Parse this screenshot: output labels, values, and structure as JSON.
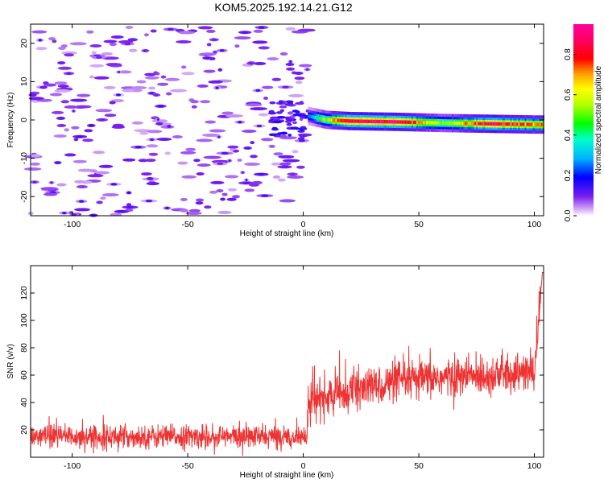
{
  "figure": {
    "title": "KOM5.2025.192.14.21.G12"
  },
  "chart_data": [
    {
      "type": "heatmap",
      "xlabel": "Height of straight line (km)",
      "ylabel": "Frequency (Hz)",
      "xlim": [
        -118,
        104
      ],
      "ylim": [
        -25,
        25
      ],
      "x_ticks": [
        -100,
        -50,
        0,
        50,
        100
      ],
      "y_ticks": [
        -20,
        -10,
        0,
        10,
        20
      ],
      "colorbar": {
        "label": "Normalized spectral amplitude",
        "range": [
          0,
          0.95
        ],
        "ticks": [
          0.0,
          0.2,
          0.4,
          0.6,
          0.8
        ],
        "colormap": "rainbow (purple to magenta)"
      },
      "signal": {
        "x_range": [
          2,
          104
        ],
        "frequency_hz": [
          0.5,
          -1
        ],
        "peak_amplitude": 0.95,
        "description_points": [
          {
            "x": 2,
            "f": 1.0,
            "amp": 0.25
          },
          {
            "x": 10,
            "f": 0.0,
            "amp": 0.6
          },
          {
            "x": 20,
            "f": -0.3,
            "amp": 0.95
          },
          {
            "x": 40,
            "f": -0.5,
            "amp": 0.9
          },
          {
            "x": 60,
            "f": -0.8,
            "amp": 0.55
          },
          {
            "x": 80,
            "f": -1.0,
            "amp": 0.9
          },
          {
            "x": 100,
            "f": -1.2,
            "amp": 0.7
          }
        ]
      },
      "noise": {
        "x_range": [
          -118,
          0
        ],
        "typical_amplitude": 0.05
      },
      "grid": false
    },
    {
      "type": "line",
      "xlabel": "Height of straight line (km)",
      "ylabel": "SNR (v/v)",
      "xlim": [
        -118,
        104
      ],
      "ylim": [
        0,
        140
      ],
      "x_ticks": [
        -100,
        -50,
        0,
        50,
        100
      ],
      "y_ticks": [
        20,
        40,
        60,
        80,
        100,
        120
      ],
      "series": [
        {
          "color": "#ee3333",
          "trend": [
            {
              "x": -118,
              "y": 15
            },
            {
              "x": -60,
              "y": 15
            },
            {
              "x": 1.5,
              "y": 15
            },
            {
              "x": 2,
              "y": 40
            },
            {
              "x": 20,
              "y": 48
            },
            {
              "x": 40,
              "y": 55
            },
            {
              "x": 60,
              "y": 58
            },
            {
              "x": 80,
              "y": 60
            },
            {
              "x": 100,
              "y": 62
            },
            {
              "x": 103.5,
              "y": 135
            }
          ],
          "noise_spread": {
            "before_zero": 7,
            "after_zero": 12
          }
        }
      ],
      "grid": false
    }
  ]
}
